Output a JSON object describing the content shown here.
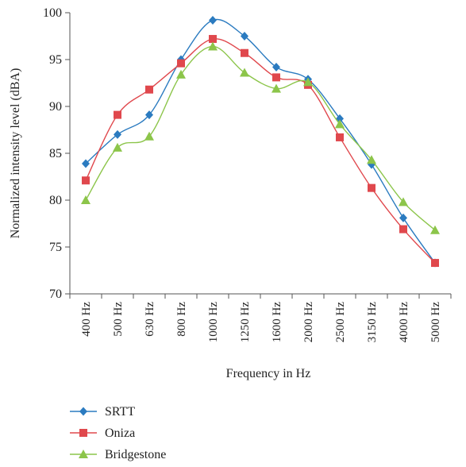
{
  "chart_data": {
    "type": "line",
    "title": "",
    "xlabel": "Frequency in Hz",
    "ylabel": "Normalized intensity level (dBA)",
    "ylim": [
      70,
      100
    ],
    "yticks": [
      70,
      75,
      80,
      85,
      90,
      95,
      100
    ],
    "grid": false,
    "legend_position": "bottom-left",
    "categories": [
      "400 Hz",
      "500 Hz",
      "630 Hz",
      "800 Hz",
      "1000 Hz",
      "1250 Hz",
      "1600 Hz",
      "2000 Hz",
      "2500 Hz",
      "3150 Hz",
      "4000 Hz",
      "5000 Hz"
    ],
    "series": [
      {
        "name": "SRTT",
        "color": "#2b7bc0",
        "marker": "diamond",
        "values": [
          83.9,
          87.0,
          89.1,
          95.0,
          99.2,
          97.5,
          94.2,
          92.9,
          88.7,
          83.8,
          78.1,
          73.3
        ]
      },
      {
        "name": "Oniza",
        "color": "#e0484d",
        "marker": "square",
        "values": [
          82.1,
          89.1,
          91.8,
          94.6,
          97.2,
          95.7,
          93.1,
          92.3,
          86.7,
          81.3,
          76.9,
          73.3
        ]
      },
      {
        "name": "Bridgestone",
        "color": "#8cc54a",
        "marker": "triangle",
        "values": [
          80.0,
          85.6,
          86.8,
          93.4,
          96.4,
          93.6,
          91.9,
          92.6,
          88.1,
          84.3,
          79.8,
          76.8
        ]
      }
    ]
  }
}
